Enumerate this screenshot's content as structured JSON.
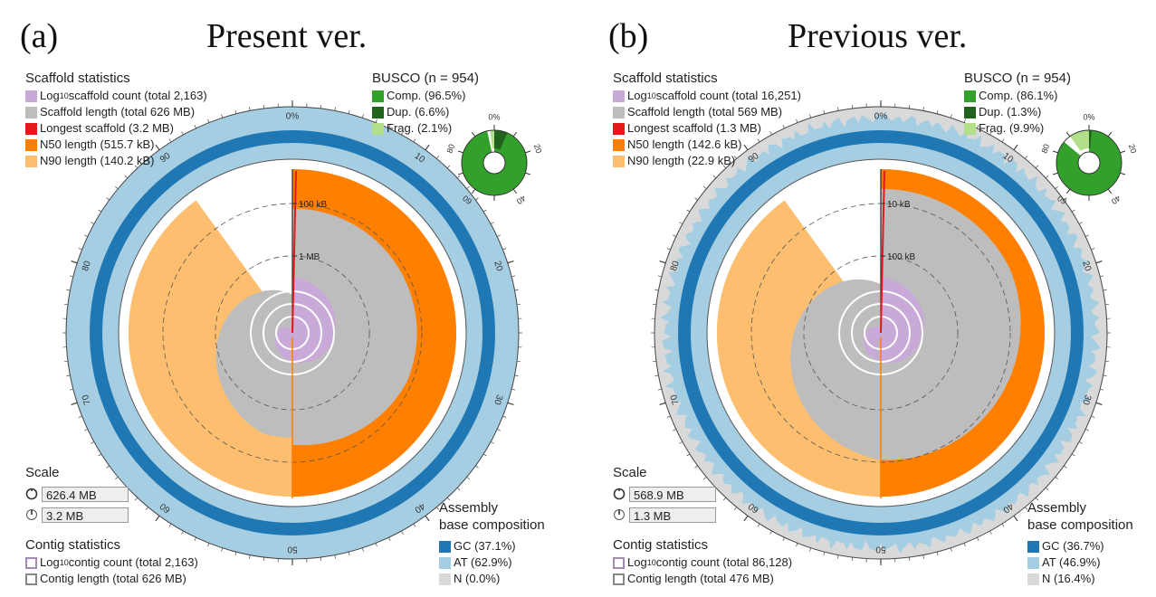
{
  "chart_data": [
    {
      "type": "snail-plot",
      "panel_label": "(a)",
      "title": "Present ver.",
      "scaffold_statistics": {
        "heading": "Scaffold statistics",
        "count_label_pre": "Log",
        "count_label_sub": "10",
        "count_label_post": " scaffold count (total 2,163)",
        "length_label": "Scaffold length (total 626 MB)",
        "longest_label": "Longest scaffold (3.2 MB)",
        "n50_label": "N50 length (515.7 kB)",
        "n90_label": "N90 length (140.2 kB)"
      },
      "busco": {
        "heading": "BUSCO (n = 954)",
        "comp_label": "Comp. (96.5%)",
        "dup_label": "Dup. (6.6%)",
        "frag_label": "Frag. (2.1%)",
        "complete_pct": 96.5,
        "duplicated_pct": 6.6,
        "fragmented_pct": 2.1,
        "ticks": [
          "0%",
          "20",
          "40",
          "60",
          "80"
        ]
      },
      "scale": {
        "heading": "Scale",
        "circumference_value": "626.4 MB",
        "radius_value": "3.2 MB"
      },
      "contig_statistics": {
        "heading": "Contig statistics",
        "count_label_pre": "Log",
        "count_label_sub": "10",
        "count_label_post": " contig count (total 2,163)",
        "length_label": "Contig length (total 626 MB)"
      },
      "base_composition": {
        "heading_line1": "Assembly",
        "heading_line2": "base composition",
        "gc_label": "GC (37.1%)",
        "at_label": "AT (62.9%)",
        "n_label": "N (0.0%)",
        "gc_pct": 37.1,
        "at_pct": 62.9,
        "n_pct": 0.0
      },
      "ring_ticks": [
        "0%",
        "10",
        "20",
        "30",
        "40",
        "50",
        "60",
        "70",
        "80",
        "90"
      ],
      "radial_labels": [
        "100 kB",
        "1 MB"
      ],
      "n50_pct": 50,
      "n90_pct": 90,
      "longest_frac": 1.0,
      "n50_frac": 0.76,
      "n90_frac": 0.64,
      "fill_frac_start": 1.0,
      "fill_frac_end": 0.52,
      "n_variation": false
    },
    {
      "type": "snail-plot",
      "panel_label": "(b)",
      "title": "Previous ver.",
      "scaffold_statistics": {
        "heading": "Scaffold statistics",
        "count_label_pre": "Log",
        "count_label_sub": "10",
        "count_label_post": " scaffold count (total 16,251)",
        "length_label": "Scaffold length (total 569 MB)",
        "longest_label": "Longest scaffold (1.3 MB)",
        "n50_label": "N50 length (142.6 kB)",
        "n90_label": "N90 length (22.9 kB)"
      },
      "busco": {
        "heading": "BUSCO (n = 954)",
        "comp_label": "Comp. (86.1%)",
        "dup_label": "Dup. (1.3%)",
        "frag_label": "Frag. (9.9%)",
        "complete_pct": 86.1,
        "duplicated_pct": 1.3,
        "fragmented_pct": 9.9,
        "ticks": [
          "0%",
          "20",
          "40",
          "60",
          "80"
        ]
      },
      "scale": {
        "heading": "Scale",
        "circumference_value": "568.9 MB",
        "radius_value": "1.3 MB"
      },
      "contig_statistics": {
        "heading": "Contig statistics",
        "count_label_pre": "Log",
        "count_label_sub": "10",
        "count_label_post": " contig count (total 86,128)",
        "length_label": "Contig length (total 476 MB)"
      },
      "base_composition": {
        "heading_line1": "Assembly",
        "heading_line2": "base composition",
        "gc_label": "GC (36.7%)",
        "at_label": "AT (46.9%)",
        "n_label": "N (16.4%)",
        "gc_pct": 36.7,
        "at_pct": 46.9,
        "n_pct": 16.4
      },
      "ring_ticks": [
        "0%",
        "10",
        "20",
        "30",
        "40",
        "50",
        "60",
        "70",
        "80",
        "90"
      ],
      "radial_labels": [
        "10 kB",
        "100 kB"
      ],
      "n50_pct": 50,
      "n90_pct": 90,
      "longest_frac": 1.0,
      "n50_frac": 0.88,
      "n90_frac": 0.82,
      "fill_frac_start": 1.0,
      "fill_frac_end": 0.66,
      "n_variation": true
    }
  ],
  "colors": {
    "scaffold_count": "#c8a9d8",
    "scaffold_length": "#bdbdbd",
    "longest": "#e31a1c",
    "n50": "#ff7f00",
    "n90": "#fdbf6f",
    "busco_comp": "#33a02c",
    "busco_dup": "#20641c",
    "busco_frag": "#b2df8a",
    "gc": "#1f78b4",
    "at": "#a6cee3",
    "n": "#d9d9d9"
  }
}
